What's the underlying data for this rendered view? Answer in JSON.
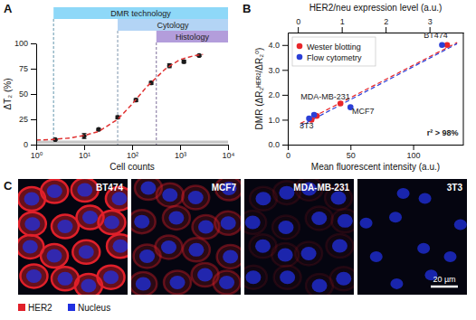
{
  "chart_data": [
    {
      "panel": "A",
      "type": "scatter",
      "x_label": "Cell counts",
      "y_label": "ΔT₂ (%)",
      "log": "x",
      "xlim": [
        1,
        10000
      ],
      "xticks": [
        {
          "value": 1,
          "label": "10⁰"
        },
        {
          "value": 10,
          "label": "10¹"
        },
        {
          "value": 100,
          "label": "10²"
        },
        {
          "value": 1000,
          "label": "10³"
        },
        {
          "value": 10000,
          "label": "10⁴"
        }
      ],
      "ylim": [
        0,
        100
      ],
      "yticks": [
        0,
        25,
        50,
        75,
        100
      ],
      "noise_band": [
        1,
        4
      ],
      "annotations": [
        {
          "text": "DMR technology",
          "x": 2.3,
          "color": "#8ed8f8"
        },
        {
          "text": "Cytology",
          "x": 50,
          "color": "#b3d4f5"
        },
        {
          "text": "Histology",
          "x": 320,
          "color": "#b39ddb"
        }
      ],
      "series": [
        {
          "type": "scatter",
          "marker": "circle",
          "color": "#1a1a1a",
          "x": [
            2.5,
            10,
            20,
            50,
            120,
            250,
            600,
            1200,
            2500
          ],
          "values": [
            5,
            8.5,
            15,
            27,
            44,
            61,
            78,
            82,
            88
          ],
          "errors": [
            0.5,
            2.5,
            1,
            1.5,
            1.5,
            1.5,
            2,
            1.5,
            1
          ]
        },
        {
          "type": "line",
          "line_style": "dashed",
          "color": "#e03030",
          "x": [
            1,
            2,
            5,
            10,
            20,
            50,
            100,
            200,
            500,
            1000,
            2000,
            3000
          ],
          "values": [
            4.5,
            5,
            6.5,
            9,
            13,
            25,
            40,
            57,
            75,
            84,
            88,
            89
          ]
        }
      ]
    },
    {
      "panel": "B",
      "type": "scatter",
      "x_label": "Mean fluorescent intensity (a.u.)",
      "x2_label": "HER2/neu expression level (a.u.)",
      "y_label": "DMR (ΔR₂ᴴᴱᴿ²/ΔR₂⁰)",
      "xlim": [
        0,
        140
      ],
      "xticks": [
        0,
        50,
        100
      ],
      "x2lim": [
        -0.23,
        3.77
      ],
      "x2ticks": [
        0,
        1,
        2,
        3
      ],
      "ylim": [
        0,
        4.5
      ],
      "yticks": [
        {
          "value": 0,
          "label": "0.0"
        },
        {
          "value": 1,
          "label": "1.0"
        },
        {
          "value": 2,
          "label": "2.0"
        },
        {
          "value": 3,
          "label": "3.0"
        },
        {
          "value": 4,
          "label": "4.0"
        }
      ],
      "legend": "top-left",
      "series": [
        {
          "name": "Wester blotting",
          "color": "#e8262a",
          "marker": "circle",
          "axis": "x2",
          "x": [
            0.31,
            0.43,
            0.97,
            3.4
          ],
          "values": [
            1.0,
            1.15,
            1.65,
            4.0
          ]
        },
        {
          "name": "Flow cytometry",
          "color": "#2b3fd6",
          "marker": "circle",
          "x": [
            17,
            21,
            50,
            123
          ],
          "values": [
            1.05,
            1.2,
            1.5,
            4.0
          ]
        }
      ],
      "fits": [
        {
          "color": "#e8262a",
          "line_style": "dashed",
          "axis": "x2",
          "x": [
            0.06,
            3.63
          ],
          "values": [
            0.85,
            4.1
          ]
        },
        {
          "color": "#2b3fd6",
          "line_style": "dashed",
          "x": [
            10,
            135
          ],
          "values": [
            0.75,
            4.05
          ]
        }
      ],
      "annotations": [
        {
          "text": "BT474",
          "x": 118,
          "y": 4.3
        },
        {
          "text": "MDA-MB-231",
          "x": 30,
          "y": 1.8
        },
        {
          "text": "MCF7",
          "x": 60,
          "y": 1.25
        },
        {
          "text": "3T3",
          "x": 15,
          "y": 0.65
        },
        {
          "text": "r² > 98%",
          "x": 136,
          "y": 0.35
        }
      ]
    }
  ],
  "images": {
    "panel": "C",
    "labels": [
      "BT474",
      "MCF7",
      "MDA-MB-231",
      "3T3"
    ],
    "legend": [
      {
        "name": "HER2",
        "color": "#e0202a"
      },
      {
        "name": "Nucleus",
        "color": "#2030e0"
      }
    ],
    "scale_bar": "20 µm"
  }
}
